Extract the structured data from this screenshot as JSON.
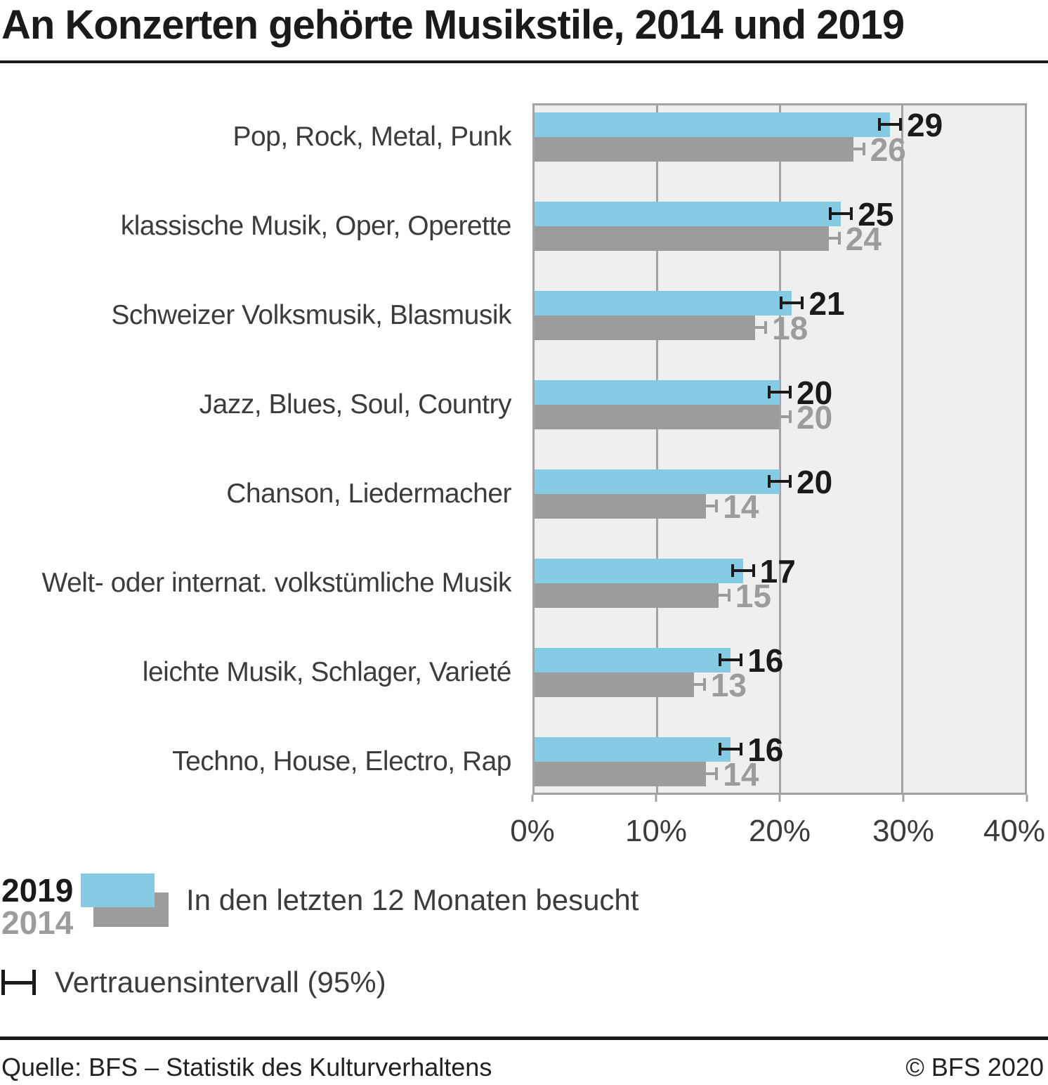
{
  "title": "An Konzerten gehörte Musikstile, 2014 und 2019",
  "chart_data": {
    "type": "bar",
    "orientation": "horizontal",
    "categories": [
      "Pop, Rock, Metal, Punk",
      "klassische Musik, Oper, Operette",
      "Schweizer Volksmusik, Blasmusik",
      "Jazz, Blues, Soul, Country",
      "Chanson, Liedermacher",
      "Welt- oder internat. volkstümliche Musik",
      "leichte Musik, Schlager, Varieté",
      "Techno, House, Electro, Rap"
    ],
    "series": [
      {
        "name": "2019",
        "color": "#85cbe4",
        "label_color": "#1a1a1a",
        "errorbar_color": "#1a1a1a",
        "values": [
          29,
          25,
          21,
          20,
          20,
          17,
          16,
          16
        ],
        "ci_halfwidth_pct": [
          1.0,
          1.0,
          1.0,
          1.0,
          1.0,
          1.0,
          1.0,
          1.0
        ]
      },
      {
        "name": "2014",
        "color": "#9c9c9c",
        "label_color": "#9c9c9c",
        "errorbar_color": "#9c9c9c",
        "values": [
          26,
          24,
          18,
          20,
          14,
          15,
          13,
          14
        ],
        "ci_halfwidth_pct": [
          0.9,
          0.9,
          0.9,
          0.9,
          0.9,
          0.9,
          0.9,
          0.9
        ]
      }
    ],
    "xlim": [
      0,
      40
    ],
    "x_ticks": [
      "0%",
      "10%",
      "20%",
      "30%",
      "40%"
    ],
    "grid": "vertical gridlines at 10%, 20%, 30%",
    "plot_background": "#efefef",
    "axis_color": "#a3a3a3",
    "legend_position": "bottom-left"
  },
  "legend": {
    "caption": "In den letzten 12 Monaten besucht",
    "ci_label": "Vertrauensintervall (95%)"
  },
  "footer": {
    "source": "Quelle: BFS – Statistik des Kulturverhaltens",
    "copyright": "© BFS 2020"
  },
  "colors": {
    "series_2019": "#85cbe4",
    "series_2014": "#9c9c9c",
    "title_text": "#1a1a1a",
    "label_text": "#3c3c3c",
    "plot_background": "#efefef",
    "axis_gray": "#a3a3a3"
  }
}
